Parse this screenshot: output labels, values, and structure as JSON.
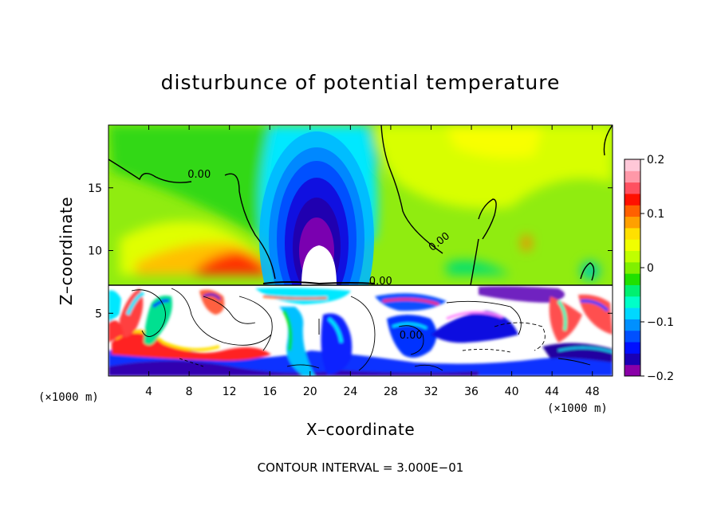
{
  "chart_data": {
    "type": "heatmap",
    "title": "disturbunce of potential temperature",
    "xlabel": "X–coordinate",
    "ylabel": "Z–coordinate",
    "x_unit": "(×1000 m)",
    "y_unit": "(×1000 m)",
    "xlim": [
      0,
      50
    ],
    "ylim": [
      0,
      20
    ],
    "x_ticks": [
      4,
      8,
      12,
      16,
      20,
      24,
      28,
      32,
      36,
      40,
      44,
      48
    ],
    "x_tick_labels": [
      "4",
      "8",
      "12",
      "16",
      "20",
      "24",
      "28",
      "32",
      "36",
      "40",
      "44",
      "48"
    ],
    "y_ticks": [
      5,
      10,
      15
    ],
    "y_tick_labels": [
      "5",
      "10",
      "15"
    ],
    "colorbar": {
      "min": -0.2,
      "max": 0.2,
      "ticks": [
        0.2,
        0.1,
        0,
        -0.1,
        -0.2
      ],
      "tick_labels": [
        "0.2",
        "0.1",
        "0",
        "−0.1",
        "−0.2"
      ],
      "colors": [
        "#8a00a8",
        "#1a00b4",
        "#0010ff",
        "#0050ff",
        "#0090ff",
        "#00d8ff",
        "#00ffc8",
        "#00f070",
        "#20e000",
        "#80f000",
        "#c0ff00",
        "#f0ff00",
        "#ffe000",
        "#ffa000",
        "#ff6000",
        "#ff1000",
        "#ff5060",
        "#ff98a8",
        "#ffc8d8"
      ]
    },
    "contour_labels": [
      {
        "text": "0.00",
        "x": 9,
        "z": 15.8
      },
      {
        "text": "0.00",
        "x": 27,
        "z": 7.3
      },
      {
        "text": "0.00",
        "x": 33,
        "z": 10.5
      },
      {
        "text": "0.00",
        "x": 30,
        "z": 3
      }
    ],
    "footnote": "CONTOUR INTERVAL =  3.000E−01"
  }
}
